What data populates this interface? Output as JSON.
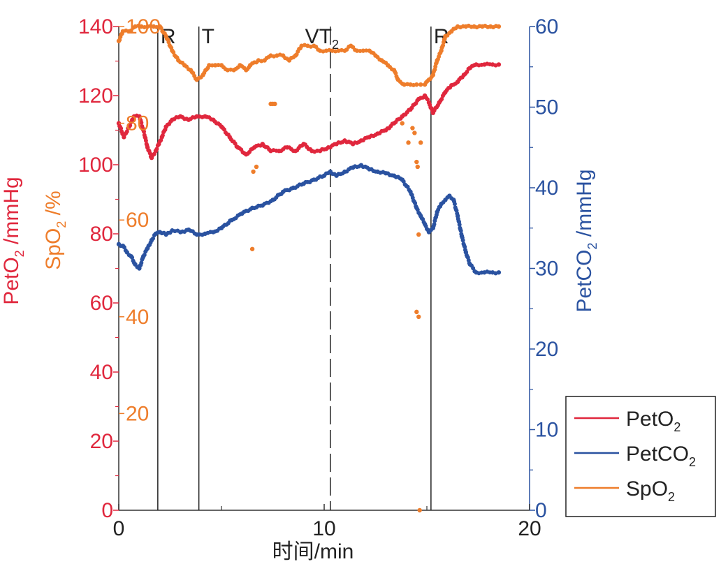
{
  "chart_data": {
    "type": "scatter",
    "xlabel": "时间/min",
    "xlim": [
      0,
      20
    ],
    "x_ticks": [
      0,
      10,
      20
    ],
    "x_tick_labels": [
      "0",
      "10",
      "20"
    ],
    "axes": {
      "left_outer": {
        "label_main": "PetO",
        "label_sub": "2",
        "label_tail": " /mmHg",
        "range": [
          0,
          140
        ],
        "ticks": [
          0,
          20,
          40,
          60,
          80,
          100,
          120,
          140
        ],
        "tick_labels": [
          "0",
          "20",
          "40",
          "60",
          "80",
          "100",
          "120",
          "140"
        ],
        "color": "#e0273d"
      },
      "left_inner": {
        "label_main": "SpO",
        "label_sub": "2",
        "label_tail": " /%",
        "range": [
          0,
          100
        ],
        "ticks": [
          20,
          40,
          60,
          80,
          100
        ],
        "tick_labels": [
          "20",
          "40",
          "60",
          "80",
          "100"
        ],
        "color": "#ee7d2b"
      },
      "right": {
        "label_main": "PetCO",
        "label_sub": "2",
        "label_tail": " /mmHg",
        "range": [
          0,
          60
        ],
        "ticks": [
          0,
          10,
          20,
          30,
          40,
          50,
          60
        ],
        "tick_labels": [
          "0",
          "10",
          "20",
          "30",
          "40",
          "50",
          "60"
        ],
        "color": "#2a52a0"
      }
    },
    "markers": [
      {
        "label": "R",
        "x": 1.9,
        "style": "solid"
      },
      {
        "label": "T",
        "x": 3.9,
        "style": "solid"
      },
      {
        "label": "VT",
        "sub": "2",
        "x": 10.3,
        "style": "dashed"
      },
      {
        "label": "R",
        "x": 15.2,
        "style": "solid"
      }
    ],
    "legend": {
      "placement": "right",
      "entries": [
        {
          "main": "PetO",
          "sub": "2",
          "color": "#e0273d"
        },
        {
          "main": "PetCO",
          "sub": "2",
          "color": "#2a52a0"
        },
        {
          "main": "SpO",
          "sub": "2",
          "color": "#ee7d2b"
        }
      ]
    },
    "series": [
      {
        "name": "PetO2",
        "axis": "left_outer",
        "color": "#e0273d",
        "x": [
          0,
          0.25,
          0.5,
          0.75,
          1.0,
          1.2,
          1.4,
          1.6,
          1.8,
          1.95,
          2.1,
          2.3,
          2.6,
          3.0,
          3.4,
          3.8,
          4.2,
          4.6,
          5.0,
          5.4,
          5.8,
          6.2,
          6.6,
          7.0,
          7.4,
          7.8,
          8.2,
          8.6,
          9.0,
          9.4,
          9.8,
          10.2,
          10.6,
          11.0,
          11.4,
          11.8,
          12.2,
          12.6,
          13.0,
          13.4,
          13.8,
          14.2,
          14.6,
          14.9,
          15.1,
          15.3,
          15.6,
          15.9,
          16.2,
          16.5,
          16.8,
          17.1,
          17.4,
          17.8,
          18.2,
          18.5
        ],
        "y": [
          112,
          108,
          111,
          114,
          114,
          110,
          105,
          102,
          104,
          106,
          108,
          111,
          113,
          114,
          113,
          114,
          114,
          113,
          111,
          108,
          105,
          103,
          105,
          106,
          104,
          104,
          105,
          104,
          106,
          104,
          104,
          105,
          106,
          107,
          106,
          107,
          108,
          109,
          110,
          112,
          114,
          116,
          119,
          120,
          118,
          115,
          118,
          121,
          123,
          124,
          126,
          128,
          129,
          129,
          129,
          129
        ]
      },
      {
        "name": "PetCO2",
        "axis": "right",
        "color": "#2a52a0",
        "x": [
          0,
          0.2,
          0.4,
          0.6,
          0.8,
          1.0,
          1.2,
          1.4,
          1.6,
          1.8,
          2.0,
          2.3,
          2.6,
          3.0,
          3.4,
          3.8,
          4.2,
          4.6,
          5.0,
          5.5,
          6.0,
          6.5,
          7.0,
          7.5,
          8.0,
          8.5,
          9.0,
          9.5,
          10.0,
          10.3,
          10.6,
          11.0,
          11.4,
          11.8,
          12.2,
          12.6,
          13.0,
          13.4,
          13.8,
          14.2,
          14.5,
          14.7,
          14.9,
          15.1,
          15.3,
          15.5,
          15.7,
          15.9,
          16.1,
          16.3,
          16.5,
          16.7,
          16.9,
          17.1,
          17.4,
          17.8,
          18.2,
          18.5
        ],
        "y": [
          33,
          32.8,
          32,
          31.5,
          30.5,
          30,
          31.5,
          32.5,
          33.5,
          34.3,
          34.5,
          34.2,
          34.7,
          34.5,
          34.8,
          34.2,
          34.3,
          34.5,
          35,
          36,
          36.8,
          37.5,
          37.8,
          38.5,
          39.5,
          40,
          40.5,
          41,
          41.5,
          42,
          41.5,
          42,
          42.5,
          42.8,
          42.3,
          42,
          41.8,
          41.5,
          41,
          39.5,
          37.5,
          36.5,
          35.5,
          34.5,
          35,
          37,
          38,
          38.5,
          39,
          38.5,
          36.5,
          34,
          32,
          30.5,
          29.5,
          29.5,
          29.5,
          29.5
        ]
      },
      {
        "name": "SpO2",
        "axis": "left_inner",
        "color": "#ee7d2b",
        "x": [
          0,
          0.2,
          0.5,
          0.8,
          1.1,
          1.4,
          1.7,
          2.0,
          2.3,
          2.6,
          2.9,
          3.2,
          3.5,
          3.8,
          4.1,
          4.4,
          4.7,
          5.0,
          5.3,
          5.6,
          5.9,
          6.2,
          6.4,
          6.8,
          7.1,
          7.4,
          7.7,
          8.0,
          8.3,
          8.6,
          8.9,
          9.2,
          9.5,
          9.8,
          10.1,
          10.4,
          10.7,
          11.0,
          11.3,
          11.6,
          11.9,
          12.2,
          12.5,
          12.8,
          13.1,
          13.4,
          13.6,
          13.9,
          14.2,
          14.5,
          14.7,
          14.9,
          15.1,
          15.3,
          15.5,
          15.7,
          15.9,
          16.2,
          16.5,
          16.9,
          17.3,
          17.7,
          18.1,
          18.5
        ],
        "y": [
          97,
          99,
          99,
          100,
          100,
          100,
          100,
          100,
          98,
          95,
          93,
          92,
          91,
          89,
          90,
          92,
          92,
          92,
          91,
          91,
          92,
          91,
          92,
          93,
          93,
          94,
          94,
          94,
          93,
          94,
          96,
          96,
          96,
          95,
          95,
          95,
          95,
          95,
          96,
          95,
          95,
          95,
          94,
          93,
          92,
          91,
          89,
          88,
          88,
          88,
          88,
          88,
          89,
          90,
          93,
          95,
          98,
          99,
          100,
          100,
          100,
          100,
          100,
          100
        ]
      },
      {
        "name": "SpO2_outliers",
        "axis": "left_inner",
        "color": "#ee7d2b",
        "x": [
          6.55,
          6.7,
          6.5,
          7.4,
          7.5,
          7.6,
          14.3,
          14.4,
          14.5,
          14.55,
          14.6,
          13.8,
          14.1,
          14.7,
          14.5,
          14.6,
          14.65
        ],
        "y": [
          70,
          71,
          54,
          84,
          84,
          84,
          79,
          78,
          72,
          71,
          57,
          80,
          76,
          76,
          41,
          40,
          0
        ]
      }
    ]
  }
}
